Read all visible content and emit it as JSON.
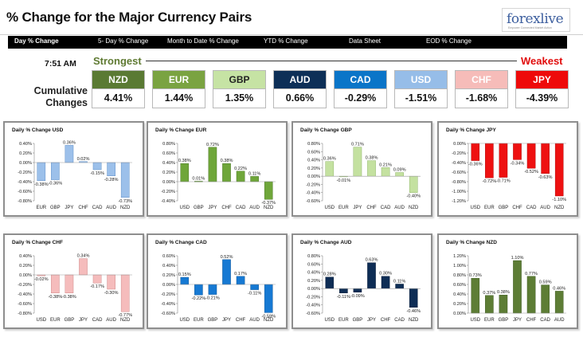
{
  "header": {
    "title": "% Change for the Major Currency Pairs"
  },
  "logo": {
    "name": "forexlive",
    "sub": "Empower Connected Market Action"
  },
  "nav": [
    {
      "label": "Day % Change"
    },
    {
      "label": "5- Day % Change"
    },
    {
      "label": "Month to Date % Change"
    },
    {
      "label": "YTD % Change"
    },
    {
      "label": "Data Sheet"
    },
    {
      "label": "EOD % Change"
    }
  ],
  "summary": {
    "time": "7:51 AM",
    "strongest_label": "Strongest",
    "weakest_label": "Weakest",
    "cumulative_label": "Cumulative Changes",
    "currencies": [
      {
        "name": "NZD",
        "value": "4.41%",
        "bg": "#5a7a33",
        "fg": "#ffffff"
      },
      {
        "name": "EUR",
        "value": "1.44%",
        "bg": "#7aa341",
        "fg": "#ffffff"
      },
      {
        "name": "GBP",
        "value": "1.35%",
        "bg": "#c6e3a4",
        "fg": "#222222"
      },
      {
        "name": "AUD",
        "value": "0.66%",
        "bg": "#0d2f57",
        "fg": "#ffffff"
      },
      {
        "name": "CAD",
        "value": "-0.29%",
        "bg": "#0a75c8",
        "fg": "#ffffff"
      },
      {
        "name": "USD",
        "value": "-1.51%",
        "bg": "#96bde8",
        "fg": "#ffffff"
      },
      {
        "name": "CHF",
        "value": "-1.68%",
        "bg": "#f6bcb9",
        "fg": "#ffffff"
      },
      {
        "name": "JPY",
        "value": "-4.39%",
        "bg": "#ee0a0a",
        "fg": "#ffffff"
      }
    ]
  },
  "chart_data": [
    {
      "type": "bar",
      "title": "Daily % Change USD",
      "categories": [
        "EUR",
        "GBP",
        "JPY",
        "CHF",
        "CAD",
        "AUD",
        "NZD"
      ],
      "values": [
        -0.38,
        -0.36,
        0.36,
        0.02,
        -0.15,
        -0.28,
        -0.73
      ],
      "labels": [
        "-0.38%",
        "-0.36%",
        "0.36%",
        "0.02%",
        "-0.15%",
        "-0.28%",
        "-0.73%"
      ],
      "ylim": [
        -0.8,
        0.4
      ],
      "ticks": [
        -0.8,
        -0.6,
        -0.4,
        -0.2,
        0,
        0.2,
        0.4
      ],
      "tick_labels": [
        "-0.80%",
        "-0.60%",
        "-0.40%",
        "-0.20%",
        "0.00%",
        "0.20%",
        "0.40%"
      ],
      "color": "#9cc0ea",
      "accent": "#4a7fbf"
    },
    {
      "type": "bar",
      "title": "Daily % Change EUR",
      "categories": [
        "USD",
        "GBP",
        "JPY",
        "CHF",
        "CAD",
        "AUD",
        "NZD"
      ],
      "values": [
        0.38,
        0.01,
        0.72,
        0.38,
        0.22,
        0.11,
        -0.37
      ],
      "labels": [
        "0.38%",
        "0.01%",
        "0.72%",
        "0.38%",
        "0.22%",
        "0.11%",
        "-0.37%"
      ],
      "ylim": [
        -0.4,
        0.8
      ],
      "ticks": [
        -0.4,
        -0.2,
        0,
        0.2,
        0.4,
        0.6,
        0.8
      ],
      "tick_labels": [
        "-0.40%",
        "-0.20%",
        "0.00%",
        "0.20%",
        "0.40%",
        "0.60%",
        "0.80%"
      ],
      "color": "#6fa63a",
      "accent": "#3d6b1c"
    },
    {
      "type": "bar",
      "title": "Daily % Change GBP",
      "categories": [
        "USD",
        "EUR",
        "JPY",
        "CHF",
        "CAD",
        "AUD",
        "NZD"
      ],
      "values": [
        0.36,
        -0.01,
        0.71,
        0.38,
        0.21,
        0.09,
        -0.4
      ],
      "labels": [
        "0.36%",
        "-0.01%",
        "0.71%",
        "0.38%",
        "0.21%",
        "0.09%",
        "-0.40%"
      ],
      "ylim": [
        -0.6,
        0.8
      ],
      "ticks": [
        -0.6,
        -0.4,
        -0.2,
        0,
        0.2,
        0.4,
        0.6,
        0.8
      ],
      "tick_labels": [
        "-0.60%",
        "-0.40%",
        "-0.20%",
        "0.00%",
        "0.20%",
        "0.40%",
        "0.60%",
        "0.80%"
      ],
      "color": "#c4e1a0",
      "accent": "#7fa957"
    },
    {
      "type": "bar",
      "title": "Daily % Change JPY",
      "categories": [
        "USD",
        "EUR",
        "GBP",
        "CHF",
        "CAD",
        "AUD",
        "NZD"
      ],
      "values": [
        -0.36,
        -0.72,
        -0.71,
        -0.34,
        -0.52,
        -0.63,
        -1.1
      ],
      "labels": [
        "-0.36%",
        "-0.72%",
        "-0.71%",
        "-0.34%",
        "-0.52%",
        "-0.63%",
        "-1.10%"
      ],
      "ylim": [
        -1.2,
        0
      ],
      "ticks": [
        -1.2,
        -1.0,
        -0.8,
        -0.6,
        -0.4,
        -0.2,
        0
      ],
      "tick_labels": [
        "-1.20%",
        "-1.00%",
        "-0.80%",
        "-0.60%",
        "-0.40%",
        "-0.20%",
        "0.00%"
      ],
      "color": "#ee1111",
      "accent": "#a30000"
    },
    {
      "type": "bar",
      "title": "Daily % Change CHF",
      "categories": [
        "USD",
        "EUR",
        "GBP",
        "JPY",
        "CAD",
        "AUD",
        "NZD"
      ],
      "values": [
        -0.02,
        -0.38,
        -0.38,
        0.34,
        -0.17,
        -0.3,
        -0.77
      ],
      "labels": [
        "-0.02%",
        "-0.38%",
        "-0.38%",
        "0.34%",
        "-0.17%",
        "-0.30%",
        "-0.77%"
      ],
      "ylim": [
        -0.8,
        0.4
      ],
      "ticks": [
        -0.8,
        -0.6,
        -0.4,
        -0.2,
        0,
        0.2,
        0.4
      ],
      "tick_labels": [
        "-0.80%",
        "-0.60%",
        "-0.40%",
        "-0.20%",
        "0.00%",
        "0.20%",
        "0.40%"
      ],
      "color": "#f5bcbc",
      "accent": "#c77b7b"
    },
    {
      "type": "bar",
      "title": "Daily % Change CAD",
      "categories": [
        "USD",
        "EUR",
        "GBP",
        "JPY",
        "CHF",
        "AUD",
        "NZD"
      ],
      "values": [
        0.15,
        -0.22,
        -0.21,
        0.52,
        0.17,
        -0.11,
        -0.59
      ],
      "labels": [
        "0.15%",
        "-0.22%",
        "-0.21%",
        "0.52%",
        "0.17%",
        "-0.11%",
        "-0.59%"
      ],
      "ylim": [
        -0.6,
        0.6
      ],
      "ticks": [
        -0.6,
        -0.4,
        -0.2,
        0,
        0.2,
        0.4,
        0.6
      ],
      "tick_labels": [
        "-0.60%",
        "-0.40%",
        "-0.20%",
        "0.00%",
        "0.20%",
        "0.40%",
        "0.60%"
      ],
      "color": "#1679d3",
      "accent": "#0b4d8a"
    },
    {
      "type": "bar",
      "title": "Daily % Change AUD",
      "categories": [
        "USD",
        "EUR",
        "GBP",
        "JPY",
        "CHF",
        "CAD",
        "NZD"
      ],
      "values": [
        0.28,
        -0.11,
        -0.09,
        0.63,
        0.3,
        0.11,
        -0.46
      ],
      "labels": [
        "0.28%",
        "-0.11%",
        "-0.09%",
        "0.63%",
        "0.30%",
        "0.11%",
        "-0.46%"
      ],
      "ylim": [
        -0.6,
        0.8
      ],
      "ticks": [
        -0.6,
        -0.4,
        -0.2,
        0,
        0.2,
        0.4,
        0.6,
        0.8
      ],
      "tick_labels": [
        "-0.60%",
        "-0.40%",
        "-0.20%",
        "0.00%",
        "0.20%",
        "0.40%",
        "0.60%",
        "0.80%"
      ],
      "color": "#0e2d55",
      "accent": "#061630"
    },
    {
      "type": "bar",
      "title": "Daily % Change NZD",
      "categories": [
        "USD",
        "EUR",
        "GBP",
        "JPY",
        "CHF",
        "CAD",
        "AUD"
      ],
      "values": [
        0.73,
        0.37,
        0.38,
        1.1,
        0.77,
        0.59,
        0.46
      ],
      "labels": [
        "0.73%",
        "0.37%",
        "0.38%",
        "1.10%",
        "0.77%",
        "0.59%",
        "0.46%"
      ],
      "ylim": [
        0,
        1.2
      ],
      "ticks": [
        0,
        0.2,
        0.4,
        0.6,
        0.8,
        1.0,
        1.2
      ],
      "tick_labels": [
        "0.00%",
        "0.20%",
        "0.40%",
        "0.60%",
        "0.80%",
        "1.00%",
        "1.20%"
      ],
      "color": "#5d7d35",
      "accent": "#34501a"
    }
  ]
}
